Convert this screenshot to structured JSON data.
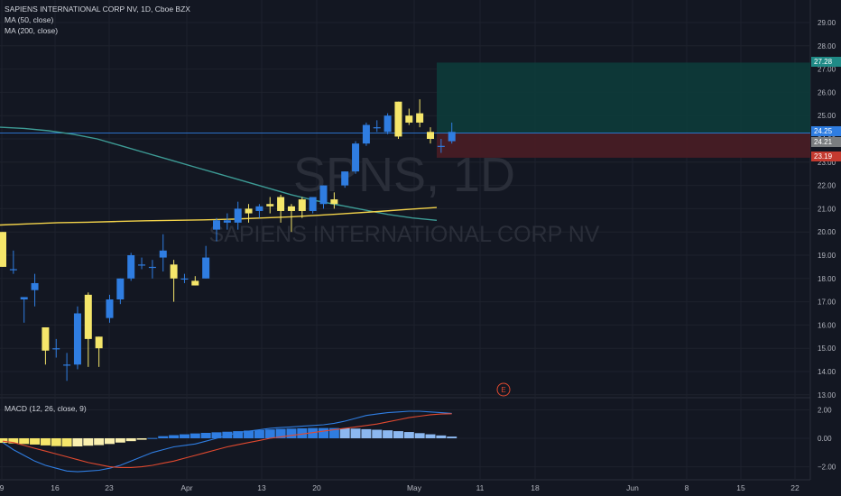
{
  "legend": {
    "title": "SAPIENS INTERNATIONAL CORP NV, 1D, Cboe BZX",
    "ma50": "MA (50, close)",
    "ma200": "MA (200, close)",
    "macd": "MACD (12, 26, close, 9)"
  },
  "watermark": {
    "symbol": "SPNS, 1D",
    "name": "SAPIENS INTERNATIONAL CORP NV"
  },
  "earnings_marker": "E",
  "price_labels": {
    "target": "27.28",
    "last": "24.25",
    "ma": "24.21",
    "stop": "23.19"
  },
  "colors": {
    "background": "#131722",
    "up": "#2f7de1",
    "down": "#f5e66a",
    "ma50": "#3d9b95",
    "ma200": "#f3d34a",
    "macd_line": "#2f7de1",
    "signal_line": "#e0492f",
    "target_zone": "#0d3b3a",
    "stop_zone": "#4a1d25"
  },
  "chart_data": [
    {
      "type": "candlestick",
      "title": "SAPIENS INTERNATIONAL CORP NV, 1D, Cboe BZX",
      "x_ticks": [
        "9",
        "16",
        "23",
        "Apr",
        "13",
        "20",
        "May",
        "11",
        "18",
        "Jun",
        "8",
        "15",
        "22"
      ],
      "y_ticks": [
        13.0,
        14.0,
        15.0,
        16.0,
        17.0,
        18.0,
        19.0,
        20.0,
        21.0,
        22.0,
        23.0,
        24.0,
        25.0,
        26.0,
        27.0,
        28.0,
        29.0
      ],
      "ylim": [
        12.6,
        29.4
      ],
      "candles": [
        {
          "o": 20.0,
          "h": 20.0,
          "l": 18.5,
          "c": 18.5
        },
        {
          "o": 18.4,
          "h": 19.2,
          "l": 18.2,
          "c": 18.4
        },
        {
          "o": 17.1,
          "h": 17.2,
          "l": 16.1,
          "c": 17.2
        },
        {
          "o": 17.5,
          "h": 18.2,
          "l": 16.8,
          "c": 17.8
        },
        {
          "o": 15.9,
          "h": 15.9,
          "l": 14.3,
          "c": 14.9
        },
        {
          "o": 15.0,
          "h": 15.4,
          "l": 14.6,
          "c": 15.0
        },
        {
          "o": 14.3,
          "h": 14.8,
          "l": 13.6,
          "c": 14.3
        },
        {
          "o": 14.3,
          "h": 16.8,
          "l": 14.1,
          "c": 16.5
        },
        {
          "o": 17.3,
          "h": 17.4,
          "l": 14.2,
          "c": 15.4
        },
        {
          "o": 15.5,
          "h": 15.5,
          "l": 14.2,
          "c": 15.0
        },
        {
          "o": 16.3,
          "h": 17.3,
          "l": 16.1,
          "c": 17.1
        },
        {
          "o": 17.1,
          "h": 18.0,
          "l": 16.9,
          "c": 18.0
        },
        {
          "o": 18.0,
          "h": 19.1,
          "l": 17.9,
          "c": 19.0
        },
        {
          "o": 18.6,
          "h": 18.9,
          "l": 18.4,
          "c": 18.6
        },
        {
          "o": 18.5,
          "h": 18.8,
          "l": 18.0,
          "c": 18.5
        },
        {
          "o": 18.9,
          "h": 19.9,
          "l": 18.3,
          "c": 19.2
        },
        {
          "o": 18.6,
          "h": 18.8,
          "l": 17.0,
          "c": 18.0
        },
        {
          "o": 18.0,
          "h": 18.2,
          "l": 17.8,
          "c": 18.0
        },
        {
          "o": 17.9,
          "h": 18.1,
          "l": 17.7,
          "c": 17.7
        },
        {
          "o": 18.0,
          "h": 19.4,
          "l": 18.0,
          "c": 18.9
        },
        {
          "o": 20.1,
          "h": 20.6,
          "l": 19.6,
          "c": 20.5
        },
        {
          "o": 20.4,
          "h": 20.8,
          "l": 20.1,
          "c": 20.5
        },
        {
          "o": 20.4,
          "h": 21.3,
          "l": 20.1,
          "c": 21.0
        },
        {
          "o": 21.0,
          "h": 21.2,
          "l": 20.4,
          "c": 20.8
        },
        {
          "o": 20.9,
          "h": 21.2,
          "l": 20.6,
          "c": 21.1
        },
        {
          "o": 21.2,
          "h": 21.5,
          "l": 20.8,
          "c": 21.1
        },
        {
          "o": 21.5,
          "h": 21.6,
          "l": 20.4,
          "c": 20.9
        },
        {
          "o": 21.1,
          "h": 21.2,
          "l": 20.0,
          "c": 20.9
        },
        {
          "o": 21.4,
          "h": 21.5,
          "l": 20.6,
          "c": 20.9
        },
        {
          "o": 20.9,
          "h": 21.5,
          "l": 20.8,
          "c": 21.5
        },
        {
          "o": 21.2,
          "h": 22.0,
          "l": 21.0,
          "c": 22.0
        },
        {
          "o": 21.4,
          "h": 21.7,
          "l": 21.0,
          "c": 21.2
        },
        {
          "o": 22.0,
          "h": 22.6,
          "l": 21.9,
          "c": 22.6
        },
        {
          "o": 22.6,
          "h": 23.9,
          "l": 22.5,
          "c": 23.8
        },
        {
          "o": 23.8,
          "h": 24.7,
          "l": 23.7,
          "c": 24.6
        },
        {
          "o": 24.5,
          "h": 24.8,
          "l": 24.3,
          "c": 24.5
        },
        {
          "o": 24.3,
          "h": 25.1,
          "l": 24.2,
          "c": 25.0
        },
        {
          "o": 25.6,
          "h": 25.6,
          "l": 24.0,
          "c": 24.1
        },
        {
          "o": 25.0,
          "h": 25.3,
          "l": 24.6,
          "c": 24.7
        },
        {
          "o": 25.1,
          "h": 25.7,
          "l": 24.5,
          "c": 24.7
        },
        {
          "o": 24.3,
          "h": 24.5,
          "l": 23.8,
          "c": 24.0
        },
        {
          "o": 23.7,
          "h": 24.0,
          "l": 23.4,
          "c": 23.7
        },
        {
          "o": 23.9,
          "h": 24.7,
          "l": 23.8,
          "c": 24.3
        }
      ],
      "ma50": [
        24.5,
        24.45,
        24.35,
        24.2,
        24.0,
        23.7,
        23.4,
        23.1,
        22.8,
        22.5,
        22.2,
        21.9,
        21.6,
        21.35,
        21.15,
        20.95,
        20.75,
        20.6,
        20.5
      ],
      "ma200": [
        20.3,
        20.35,
        20.4,
        20.42,
        20.45,
        20.48,
        20.5,
        20.52,
        20.55,
        20.6,
        20.65,
        20.72,
        20.8,
        20.88,
        20.97,
        21.05
      ],
      "long_position": {
        "entry": 24.25,
        "target": 27.28,
        "stop": 23.19
      }
    },
    {
      "type": "macd",
      "title": "MACD (12, 26, close, 9)",
      "y_ticks": [
        2.0,
        0.0,
        -2.0
      ],
      "ylim": [
        -2.6,
        2.6
      ],
      "histogram": [
        -0.32,
        -0.36,
        -0.4,
        -0.44,
        -0.5,
        -0.55,
        -0.58,
        -0.57,
        -0.52,
        -0.48,
        -0.4,
        -0.3,
        -0.2,
        -0.1,
        0.02,
        0.15,
        0.22,
        0.28,
        0.34,
        0.38,
        0.42,
        0.46,
        0.5,
        0.54,
        0.58,
        0.62,
        0.66,
        0.68,
        0.7,
        0.72,
        0.72,
        0.72,
        0.7,
        0.68,
        0.64,
        0.6,
        0.56,
        0.5,
        0.44,
        0.36,
        0.28,
        0.2,
        0.12
      ],
      "macd_line": [
        -0.3,
        -0.8,
        -1.2,
        -1.6,
        -1.9,
        -2.1,
        -2.3,
        -2.35,
        -2.3,
        -2.25,
        -2.1,
        -1.9,
        -1.6,
        -1.3,
        -1.0,
        -0.8,
        -0.6,
        -0.5,
        -0.4,
        -0.2,
        0.0,
        0.2,
        0.4,
        0.5,
        0.6,
        0.7,
        0.75,
        0.8,
        0.85,
        0.9,
        0.95,
        1.05,
        1.2,
        1.4,
        1.6,
        1.7,
        1.8,
        1.85,
        1.9,
        1.9,
        1.85,
        1.8,
        1.75
      ],
      "signal_line": [
        -0.2,
        -0.3,
        -0.5,
        -0.7,
        -0.9,
        -1.1,
        -1.3,
        -1.5,
        -1.7,
        -1.85,
        -2.0,
        -2.05,
        -2.05,
        -2.0,
        -1.9,
        -1.75,
        -1.6,
        -1.4,
        -1.2,
        -1.0,
        -0.8,
        -0.6,
        -0.45,
        -0.3,
        -0.15,
        0.0,
        0.1,
        0.2,
        0.3,
        0.4,
        0.5,
        0.6,
        0.7,
        0.8,
        0.9,
        1.0,
        1.15,
        1.3,
        1.45,
        1.55,
        1.65,
        1.7,
        1.72
      ]
    }
  ]
}
